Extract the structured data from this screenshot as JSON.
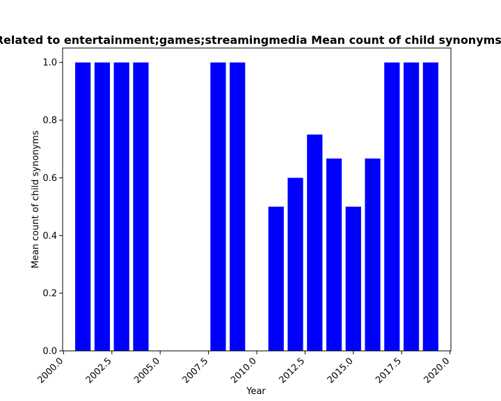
{
  "chart_data": {
    "type": "bar",
    "title": "Related to entertainment;games;streamingmedia Mean count of child synonyms in",
    "xlabel": "Year",
    "ylabel": "Mean count of child synonyms",
    "xlim": [
      1999.95,
      2020.05
    ],
    "ylim": [
      0.0,
      1.05
    ],
    "bar_width": 0.8,
    "bar_color": "#0000ff",
    "grid": false,
    "legend": "none",
    "x_ticks": [
      2000.0,
      2002.5,
      2005.0,
      2007.5,
      2010.0,
      2012.5,
      2015.0,
      2017.5,
      2020.0
    ],
    "x_tick_labels": [
      "2000.0",
      "2002.5",
      "2005.0",
      "2007.5",
      "2010.0",
      "2012.5",
      "2015.0",
      "2017.5",
      "2020.0"
    ],
    "y_ticks": [
      0.0,
      0.2,
      0.4,
      0.6,
      0.8,
      1.0
    ],
    "y_tick_labels": [
      "0.0",
      "0.2",
      "0.4",
      "0.6",
      "0.8",
      "1.0"
    ],
    "x": [
      2001,
      2002,
      2003,
      2004,
      2008,
      2009,
      2011,
      2012,
      2013,
      2014,
      2015,
      2016,
      2017,
      2018,
      2019
    ],
    "values": [
      1.0,
      1.0,
      1.0,
      1.0,
      1.0,
      1.0,
      0.5,
      0.6,
      0.75,
      0.667,
      0.5,
      0.667,
      1.0,
      1.0,
      1.0
    ]
  }
}
